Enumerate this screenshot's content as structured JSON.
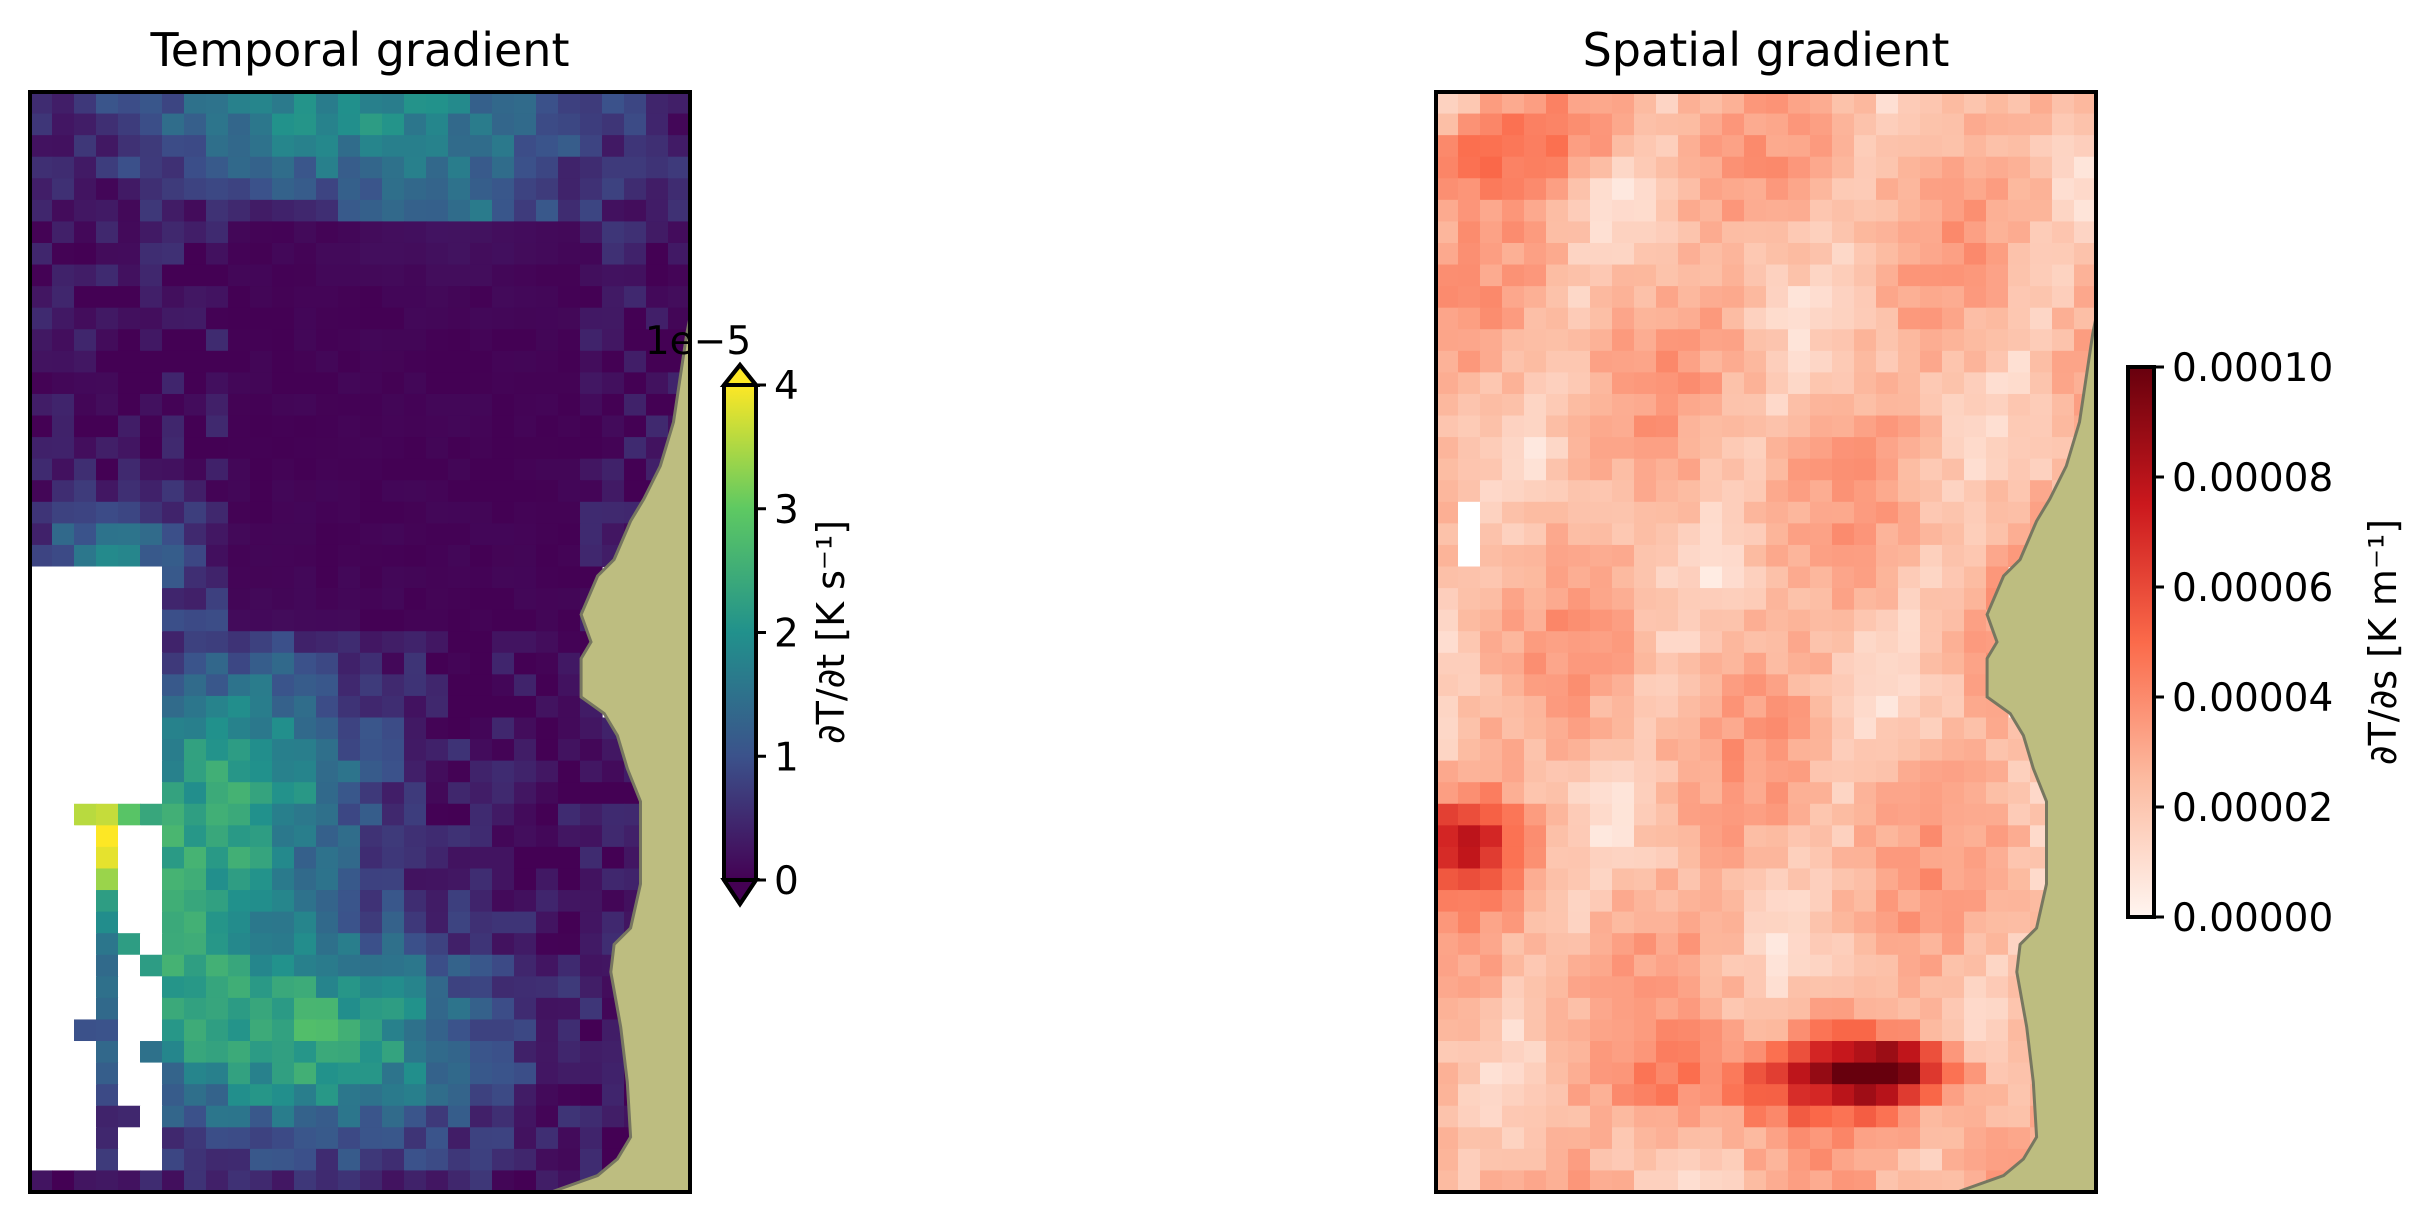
{
  "chart_data": [
    {
      "type": "heatmap",
      "title": "Temporal gradient",
      "colormap": "viridis",
      "colorbar": {
        "label": "∂T/∂t [K s⁻¹]",
        "ticks": [
          "0",
          "1",
          "2",
          "3",
          "4"
        ],
        "offset_text": "1e−5",
        "range": [
          0,
          4
        ],
        "extend": "both"
      },
      "land_color": "#bdbd80",
      "missing_color": "#ffffff"
    },
    {
      "type": "heatmap",
      "title": "Spatial gradient",
      "colormap": "Reds",
      "colorbar": {
        "label": "∂T/∂s [K m⁻¹]",
        "ticks": [
          "0.00000",
          "0.00002",
          "0.00004",
          "0.00006",
          "0.00008",
          "0.00010"
        ],
        "range": [
          0,
          0.0001
        ],
        "extend": "neither"
      },
      "land_color": "#bdbd80",
      "missing_color": "#ffffff"
    }
  ]
}
